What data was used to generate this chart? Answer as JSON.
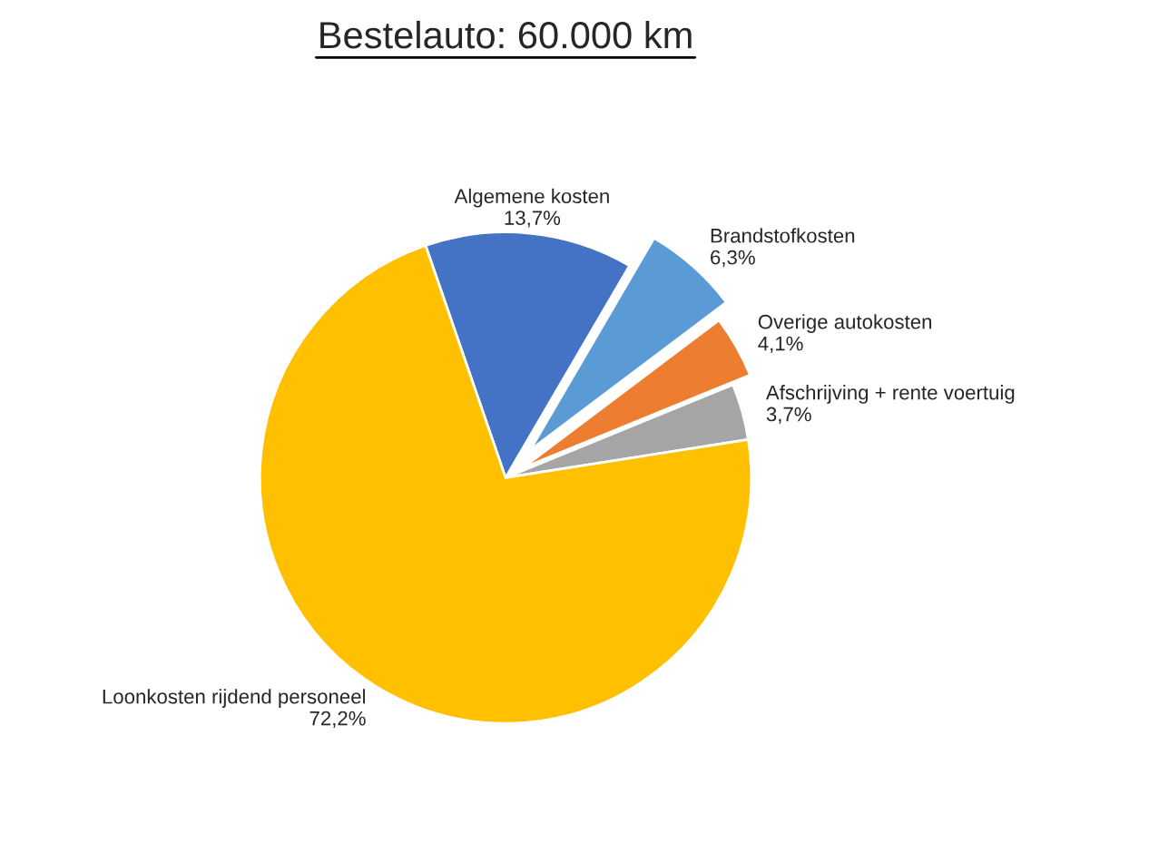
{
  "chart_data": {
    "type": "pie",
    "title": "Bestelauto: 60.000 km",
    "categories": [
      "Algemene kosten",
      "Brandstofkosten",
      "Overige autokosten",
      "Afschrijving + rente voertuig",
      "Loonkosten rijdend personeel"
    ],
    "values": [
      13.7,
      6.3,
      4.1,
      3.7,
      72.2
    ],
    "value_labels": [
      "13,7%",
      "6,3%",
      "4,1%",
      "3,7%",
      "72,2%"
    ],
    "colors": [
      "#4472c4",
      "#5b9bd5",
      "#ed7d31",
      "#a5a5a5",
      "#ffc000"
    ],
    "legend": false
  }
}
